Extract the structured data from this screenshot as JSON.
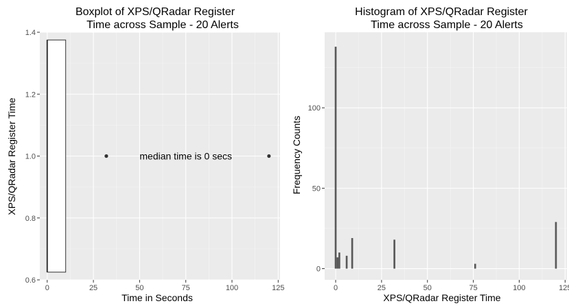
{
  "chart_data": [
    {
      "type": "boxplot",
      "title_line1": "Boxplot of XPS/QRadar Register",
      "title_line2": "Time across Sample - 20 Alerts",
      "xlabel": "Time in Seconds",
      "ylabel": "XPS/QRadar Register Time",
      "xlim": [
        -4,
        126
      ],
      "ylim": [
        0.6,
        1.4
      ],
      "x_ticks": [
        0,
        25,
        50,
        75,
        100,
        125
      ],
      "y_ticks": [
        0.6,
        0.8,
        1.0,
        1.2,
        1.4
      ],
      "y_tick_labels": [
        "0.6",
        "0.8",
        "1.0",
        "1.2",
        "1.4"
      ],
      "box": {
        "q1": 0,
        "median": 0,
        "q3": 10,
        "whisker_low": 0,
        "whisker_high": 10,
        "y_bottom": 0.625,
        "y_top": 1.375,
        "fill": "#ffffff",
        "stroke": "#333333"
      },
      "outliers": [
        {
          "x": 32,
          "y": 1.0
        },
        {
          "x": 120,
          "y": 1.0
        }
      ],
      "annotation": {
        "text": "median time is 0 secs",
        "x": 75,
        "y": 1.0
      },
      "grid": true
    },
    {
      "type": "bar",
      "title_line1": "Histogram of XPS/QRadar Register",
      "title_line2": "Time across Sample - 20 Alerts",
      "xlabel": "XPS/QRadar Register Time",
      "ylabel": "Frequency Counts",
      "xlim": [
        -6,
        126
      ],
      "ylim": [
        -7,
        147
      ],
      "x_ticks": [
        0,
        25,
        50,
        75,
        100,
        125
      ],
      "y_ticks": [
        0,
        50,
        100
      ],
      "bar_width": 1,
      "bars": [
        {
          "x": 0,
          "count": 138
        },
        {
          "x": 1,
          "count": 7
        },
        {
          "x": 2,
          "count": 10
        },
        {
          "x": 6,
          "count": 8
        },
        {
          "x": 9,
          "count": 19
        },
        {
          "x": 32,
          "count": 18
        },
        {
          "x": 76,
          "count": 3
        },
        {
          "x": 120,
          "count": 29
        }
      ],
      "bar_color": "#595959",
      "grid": true
    }
  ],
  "colors": {
    "panel_bg": "#ebebeb",
    "grid_major": "#ffffff",
    "grid_minor": "#f5f5f5"
  }
}
